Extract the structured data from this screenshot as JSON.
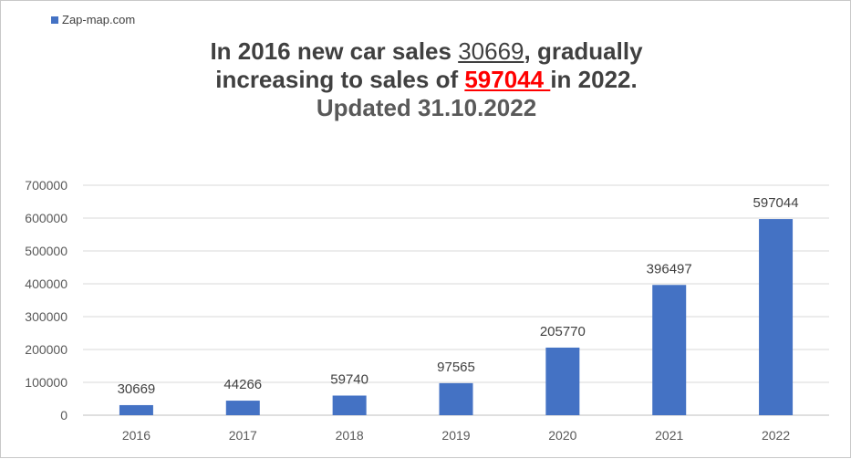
{
  "legend": {
    "label": "Zap-map.com",
    "color": "#4472C4"
  },
  "title": {
    "line1_a": "In 2016 new car sales ",
    "line1_num": "30669",
    "line1_b": ", gradually",
    "line2_a": "increasing  to sales of ",
    "line2_num": "597044 ",
    "line2_b": "in 2022.",
    "line3": "Updated 31.10.2022"
  },
  "chart_data": {
    "type": "bar",
    "categories": [
      "2016",
      "2017",
      "2018",
      "2019",
      "2020",
      "2021",
      "2022"
    ],
    "series": [
      {
        "name": "Zap-map.com",
        "values": [
          30669,
          44266,
          59740,
          97565,
          205770,
          396497,
          597044
        ],
        "color": "#4472C4"
      }
    ],
    "ylim": [
      0,
      700000
    ],
    "yticks": [
      0,
      100000,
      200000,
      300000,
      400000,
      500000,
      600000,
      700000
    ],
    "grid": true,
    "data_labels": true,
    "legend_position": "top-left",
    "xlabel": "",
    "ylabel": ""
  }
}
